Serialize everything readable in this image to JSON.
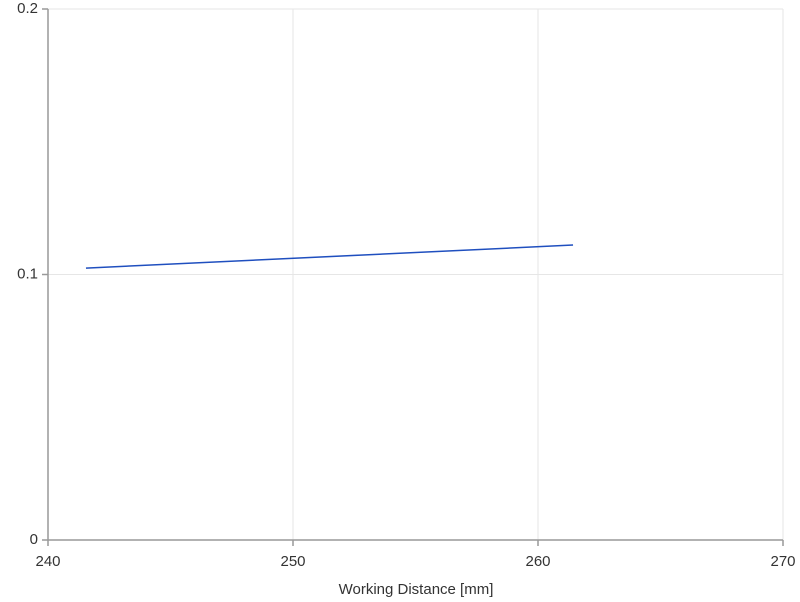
{
  "chart_data": {
    "type": "line",
    "xlabel": "Working Distance [mm]",
    "x": [
      241.55,
      261.43
    ],
    "series": [
      {
        "color": "#1f4fbf",
        "values": [
          0.1024,
          0.1111
        ]
      }
    ],
    "xlim": [
      240,
      270
    ],
    "xticks": [
      240,
      250,
      260,
      270
    ],
    "ylim": [
      0,
      0.2
    ],
    "yticks": [
      0,
      0.1,
      0.2
    ],
    "grid": true
  }
}
